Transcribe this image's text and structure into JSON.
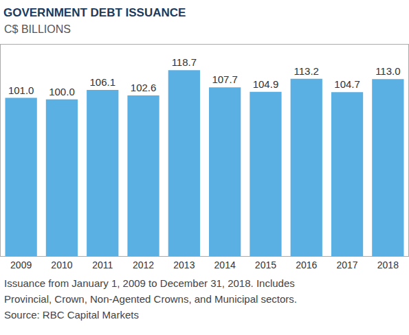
{
  "chart_data": {
    "type": "bar",
    "title": "GOVERNMENT DEBT ISSUANCE",
    "subtitle": "C$ BILLIONS",
    "categories": [
      "2009",
      "2010",
      "2011",
      "2012",
      "2013",
      "2014",
      "2015",
      "2016",
      "2017",
      "2018"
    ],
    "values": [
      101.0,
      100.0,
      106.1,
      102.6,
      118.7,
      107.7,
      104.9,
      113.2,
      104.7,
      113.0
    ],
    "value_labels": [
      "101.0",
      "100.0",
      "106.1",
      "102.6",
      "118.7",
      "107.7",
      "104.9",
      "113.2",
      "104.7",
      "113.0"
    ],
    "color": "#5aafe3",
    "ylim": [
      0,
      135
    ],
    "data_labels": true,
    "tick_labels": "x",
    "grid": false,
    "annotations": [
      "Issuance from January 1, 2009 to December 31, 2018. Includes",
      "Provincial, Crown, Non-Agented Crowns, and Municipal sectors.",
      "Source: RBC Capital Markets"
    ]
  }
}
